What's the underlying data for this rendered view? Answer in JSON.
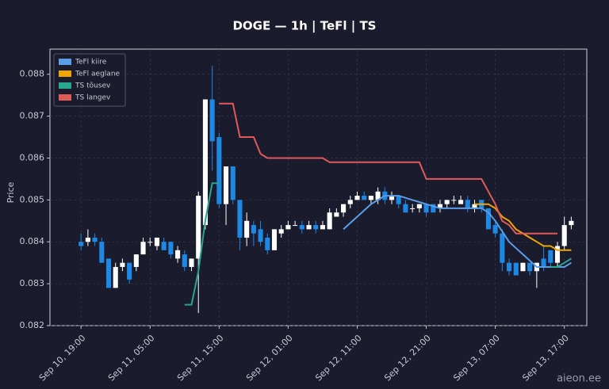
{
  "chart_data": {
    "type": "candlestick",
    "title": "DOGE — 1h  |  TeFl  |  TS",
    "y_label": "Price",
    "watermark": "aieon.ee",
    "grid": true,
    "legend": "upper-left",
    "up_color": "#ffffff",
    "down_color": "#1e88e5",
    "ylim": [
      0.082,
      0.0886
    ],
    "yticks": [
      0.082,
      0.083,
      0.084,
      0.085,
      0.086,
      0.087,
      0.088
    ],
    "xlim": [
      "Sep 10, 14:30",
      "Sep 13, 20:15"
    ],
    "xticks": [
      "Sep 10, 19:00",
      "Sep 11, 05:00",
      "Sep 11, 15:00",
      "Sep 12, 01:00",
      "Sep 12, 11:00",
      "Sep 12, 21:00",
      "Sep 13, 07:00",
      "Sep 13, 17:00"
    ],
    "x": [
      "Sep 10, 19:00",
      "Sep 10, 20:00",
      "Sep 10, 21:00",
      "Sep 10, 22:00",
      "Sep 10, 23:00",
      "Sep 11, 00:00",
      "Sep 11, 01:00",
      "Sep 11, 02:00",
      "Sep 11, 03:00",
      "Sep 11, 04:00",
      "Sep 11, 05:00",
      "Sep 11, 06:00",
      "Sep 11, 07:00",
      "Sep 11, 08:00",
      "Sep 11, 09:00",
      "Sep 11, 10:00",
      "Sep 11, 11:00",
      "Sep 11, 12:00",
      "Sep 11, 13:00",
      "Sep 11, 14:00",
      "Sep 11, 15:00",
      "Sep 11, 16:00",
      "Sep 11, 17:00",
      "Sep 11, 18:00",
      "Sep 11, 19:00",
      "Sep 11, 20:00",
      "Sep 11, 21:00",
      "Sep 11, 22:00",
      "Sep 11, 23:00",
      "Sep 12, 00:00",
      "Sep 12, 01:00",
      "Sep 12, 02:00",
      "Sep 12, 03:00",
      "Sep 12, 04:00",
      "Sep 12, 05:00",
      "Sep 12, 06:00",
      "Sep 12, 07:00",
      "Sep 12, 08:00",
      "Sep 12, 09:00",
      "Sep 12, 10:00",
      "Sep 12, 11:00",
      "Sep 12, 12:00",
      "Sep 12, 13:00",
      "Sep 12, 14:00",
      "Sep 12, 15:00",
      "Sep 12, 16:00",
      "Sep 12, 17:00",
      "Sep 12, 18:00",
      "Sep 12, 19:00",
      "Sep 12, 20:00",
      "Sep 12, 21:00",
      "Sep 12, 22:00",
      "Sep 12, 23:00",
      "Sep 13, 00:00",
      "Sep 13, 01:00",
      "Sep 13, 02:00",
      "Sep 13, 03:00",
      "Sep 13, 04:00",
      "Sep 13, 05:00",
      "Sep 13, 06:00",
      "Sep 13, 07:00",
      "Sep 13, 08:00",
      "Sep 13, 09:00",
      "Sep 13, 10:00",
      "Sep 13, 11:00",
      "Sep 13, 12:00",
      "Sep 13, 13:00",
      "Sep 13, 14:00",
      "Sep 13, 15:00",
      "Sep 13, 16:00",
      "Sep 13, 17:00",
      "Sep 13, 18:00"
    ],
    "open": [
      0.084,
      0.084,
      0.0841,
      0.084,
      0.0836,
      0.0829,
      0.0834,
      0.0835,
      0.0834,
      0.0837,
      0.084,
      0.0839,
      0.084,
      0.084,
      0.0836,
      0.0837,
      0.0834,
      0.0836,
      0.0844,
      0.0874,
      0.0865,
      0.0849,
      0.0858,
      0.085,
      0.0841,
      0.0844,
      0.0843,
      0.0841,
      0.0838,
      0.0842,
      0.0843,
      0.0844,
      0.0844,
      0.0843,
      0.0844,
      0.0843,
      0.0843,
      0.0846,
      0.0847,
      0.0849,
      0.085,
      0.0851,
      0.085,
      0.085,
      0.0852,
      0.085,
      0.0851,
      0.0849,
      0.0848,
      0.0848,
      0.0849,
      0.0849,
      0.0848,
      0.0849,
      0.085,
      0.0849,
      0.085,
      0.0848,
      0.085,
      0.0848,
      0.0844,
      0.0842,
      0.0835,
      0.0835,
      0.0833,
      0.0835,
      0.0833,
      0.0836,
      0.0838,
      0.0835,
      0.0839,
      0.0844
    ],
    "high": [
      0.0842,
      0.0843,
      0.0842,
      0.0841,
      0.0836,
      0.0835,
      0.0836,
      0.0835,
      0.0837,
      0.0841,
      0.0841,
      0.0841,
      0.0841,
      0.084,
      0.0839,
      0.0838,
      0.0836,
      0.0852,
      0.0874,
      0.0882,
      0.0866,
      0.0858,
      0.0858,
      0.085,
      0.0847,
      0.0845,
      0.0845,
      0.0842,
      0.0843,
      0.0844,
      0.0845,
      0.0845,
      0.0845,
      0.0845,
      0.0845,
      0.0845,
      0.0848,
      0.0848,
      0.0849,
      0.0851,
      0.0852,
      0.0852,
      0.0851,
      0.0853,
      0.0853,
      0.0852,
      0.0851,
      0.085,
      0.0849,
      0.0849,
      0.0849,
      0.0849,
      0.085,
      0.085,
      0.0851,
      0.0851,
      0.0851,
      0.085,
      0.085,
      0.0848,
      0.0845,
      0.0843,
      0.0836,
      0.0835,
      0.0835,
      0.0835,
      0.0835,
      0.0839,
      0.0838,
      0.084,
      0.0846,
      0.0846
    ],
    "low": [
      0.0838,
      0.0839,
      0.0839,
      0.0835,
      0.0829,
      0.0829,
      0.0833,
      0.083,
      0.0833,
      0.0837,
      0.0839,
      0.0838,
      0.0838,
      0.0836,
      0.0835,
      0.0833,
      0.0833,
      0.0823,
      0.0843,
      0.0857,
      0.0848,
      0.0844,
      0.0849,
      0.0838,
      0.0839,
      0.0839,
      0.0839,
      0.0837,
      0.0838,
      0.0841,
      0.0843,
      0.0844,
      0.0842,
      0.0843,
      0.0842,
      0.0843,
      0.0843,
      0.0846,
      0.0846,
      0.0848,
      0.085,
      0.085,
      0.0849,
      0.0849,
      0.0849,
      0.0849,
      0.0848,
      0.0847,
      0.0847,
      0.0847,
      0.0846,
      0.0847,
      0.0847,
      0.0848,
      0.0849,
      0.0849,
      0.0847,
      0.0847,
      0.0847,
      0.0843,
      0.0841,
      0.0833,
      0.0832,
      0.0832,
      0.0833,
      0.0832,
      0.0829,
      0.0833,
      0.0834,
      0.0834,
      0.0838,
      0.0843
    ],
    "close": [
      0.0839,
      0.0841,
      0.084,
      0.0835,
      0.0829,
      0.0834,
      0.0835,
      0.0831,
      0.0837,
      0.084,
      0.084,
      0.0841,
      0.0838,
      0.0837,
      0.0838,
      0.0834,
      0.0836,
      0.0851,
      0.0874,
      0.0864,
      0.0849,
      0.0858,
      0.085,
      0.0841,
      0.0845,
      0.0842,
      0.084,
      0.0838,
      0.0843,
      0.0843,
      0.0844,
      0.0844,
      0.0843,
      0.0844,
      0.0843,
      0.0844,
      0.0847,
      0.0847,
      0.0849,
      0.085,
      0.0851,
      0.085,
      0.0851,
      0.0852,
      0.085,
      0.0851,
      0.0849,
      0.0847,
      0.0848,
      0.0849,
      0.0847,
      0.0847,
      0.0849,
      0.085,
      0.085,
      0.085,
      0.0848,
      0.0849,
      0.0848,
      0.0843,
      0.0842,
      0.0835,
      0.0833,
      0.0832,
      0.0835,
      0.0833,
      0.0835,
      0.0834,
      0.0835,
      0.0839,
      0.0844,
      0.0845
    ],
    "series": [
      {
        "name": "TeFl kiire",
        "color": "#5b9ee8",
        "values": [
          null,
          null,
          null,
          null,
          null,
          null,
          null,
          null,
          null,
          null,
          null,
          null,
          null,
          null,
          null,
          null,
          null,
          null,
          null,
          null,
          null,
          null,
          null,
          null,
          null,
          null,
          null,
          null,
          null,
          null,
          null,
          null,
          null,
          null,
          null,
          null,
          null,
          null,
          0.0843,
          0.08445,
          0.0846,
          0.08475,
          0.0849,
          0.085,
          0.0851,
          0.0851,
          0.0851,
          0.08505,
          0.085,
          0.08495,
          0.0849,
          0.08485,
          0.0848,
          0.0848,
          0.0848,
          0.0848,
          0.0848,
          0.0848,
          0.0848,
          0.0847,
          0.0845,
          0.08425,
          0.084,
          0.08385,
          0.0837,
          0.08355,
          0.0834,
          0.0834,
          0.0834,
          0.0834,
          0.0834,
          0.0835
        ]
      },
      {
        "name": "TeFl aeglane",
        "color": "#f0a500",
        "values": [
          null,
          null,
          null,
          null,
          null,
          null,
          null,
          null,
          null,
          null,
          null,
          null,
          null,
          null,
          null,
          null,
          null,
          null,
          null,
          null,
          null,
          null,
          null,
          null,
          null,
          null,
          null,
          null,
          null,
          null,
          null,
          null,
          null,
          null,
          null,
          null,
          null,
          null,
          null,
          null,
          null,
          null,
          null,
          null,
          null,
          null,
          null,
          null,
          null,
          null,
          null,
          null,
          null,
          null,
          null,
          null,
          null,
          0.0849,
          0.0849,
          0.0849,
          0.0848,
          0.0846,
          0.0845,
          0.0843,
          0.0842,
          0.0841,
          0.084,
          0.0839,
          0.0839,
          0.0838,
          0.0838,
          0.0838
        ]
      },
      {
        "name": "TS tõusev",
        "color": "#2aa58f",
        "values": [
          null,
          null,
          null,
          null,
          null,
          null,
          null,
          null,
          null,
          null,
          null,
          null,
          null,
          null,
          null,
          0.0825,
          0.0825,
          0.0833,
          0.0845,
          0.0854,
          0.0854,
          null,
          null,
          null,
          null,
          null,
          null,
          null,
          null,
          null,
          null,
          null,
          null,
          null,
          null,
          null,
          null,
          null,
          null,
          null,
          null,
          null,
          null,
          null,
          null,
          null,
          null,
          null,
          null,
          null,
          null,
          null,
          null,
          null,
          null,
          null,
          null,
          null,
          null,
          null,
          null,
          null,
          null,
          null,
          null,
          null,
          null,
          null,
          0.0834,
          0.0834,
          0.0835,
          0.0836
        ]
      },
      {
        "name": "TS langev",
        "color": "#e05a5a",
        "values": [
          null,
          null,
          null,
          null,
          null,
          null,
          null,
          null,
          null,
          null,
          null,
          null,
          null,
          null,
          null,
          null,
          null,
          null,
          null,
          null,
          0.0873,
          0.0873,
          0.0873,
          0.0865,
          0.0865,
          0.0865,
          0.0861,
          0.086,
          0.086,
          0.086,
          0.086,
          0.086,
          0.086,
          0.086,
          0.086,
          0.086,
          0.0859,
          0.0859,
          0.0859,
          0.0859,
          0.0859,
          0.0859,
          0.0859,
          0.0859,
          0.0859,
          0.0859,
          0.0859,
          0.0859,
          0.0859,
          0.0859,
          0.0855,
          0.0855,
          0.0855,
          0.0855,
          0.0855,
          0.0855,
          0.0855,
          0.0855,
          0.0855,
          0.0852,
          0.0849,
          0.0845,
          0.0844,
          0.0842,
          0.0842,
          0.0842,
          0.0842,
          0.0842,
          0.0842,
          0.0842,
          null,
          null
        ]
      }
    ]
  }
}
